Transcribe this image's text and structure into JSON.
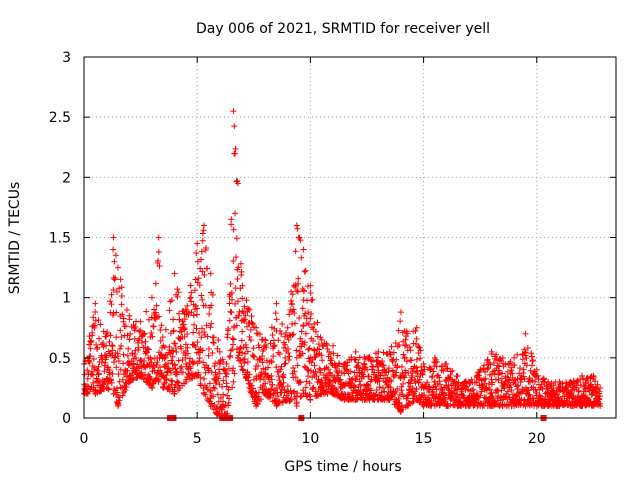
{
  "chart_data": {
    "type": "scatter",
    "title": "Day 006 of 2021, SRMTID for receiver yell",
    "xlabel": "GPS time / hours",
    "ylabel": "SRMTID / TECUs",
    "xlim": [
      0,
      23.5
    ],
    "ylim": [
      0,
      3
    ],
    "x_ticks": [
      0,
      5,
      10,
      15,
      20
    ],
    "x_tick_labels": [
      "0",
      "5",
      "10",
      "15",
      "20"
    ],
    "y_ticks": [
      0,
      0.5,
      1,
      1.5,
      2,
      2.5,
      3
    ],
    "y_tick_labels": [
      "0",
      "0.5",
      "1",
      "1.5",
      "2",
      "2.5",
      "3"
    ],
    "grid": true,
    "marker": "plus",
    "color": "#ff0000",
    "envelope_note": "Dense cloud of '+' markers from ~0 to ~22.8 h; values below are the approximate upper/lower envelope of the cloud (TECU).",
    "series": [
      {
        "name": "SRMTID",
        "x": [
          0.0,
          0.5,
          1.0,
          1.3,
          1.5,
          2.0,
          2.5,
          3.0,
          3.3,
          3.5,
          4.0,
          4.5,
          5.0,
          5.3,
          5.6,
          6.0,
          6.3,
          6.6,
          6.8,
          7.0,
          7.3,
          7.6,
          8.0,
          8.5,
          9.0,
          9.4,
          9.7,
          10.0,
          10.5,
          11.0,
          11.5,
          12.0,
          12.5,
          13.0,
          13.5,
          14.0,
          14.3,
          14.7,
          15.0,
          15.5,
          16.0,
          16.5,
          17.0,
          17.5,
          18.0,
          18.5,
          19.0,
          19.5,
          20.0,
          20.5,
          21.0,
          21.5,
          22.0,
          22.5,
          22.8
        ],
        "upper": [
          0.45,
          0.95,
          0.7,
          1.5,
          1.25,
          0.85,
          0.8,
          1.0,
          1.5,
          0.6,
          1.2,
          0.9,
          1.45,
          1.6,
          1.2,
          0.55,
          0.45,
          2.55,
          1.95,
          1.1,
          0.9,
          0.75,
          0.65,
          0.95,
          0.75,
          1.6,
          1.4,
          1.1,
          0.65,
          0.6,
          0.45,
          0.55,
          0.5,
          0.55,
          0.55,
          0.88,
          0.7,
          0.75,
          0.45,
          0.5,
          0.45,
          0.35,
          0.3,
          0.4,
          0.55,
          0.5,
          0.5,
          0.7,
          0.4,
          0.3,
          0.3,
          0.3,
          0.35,
          0.35,
          0.25
        ],
        "lower": [
          0.2,
          0.2,
          0.25,
          0.2,
          0.1,
          0.3,
          0.35,
          0.25,
          0.3,
          0.25,
          0.2,
          0.3,
          0.35,
          0.2,
          0.1,
          0.0,
          0.0,
          0.3,
          0.5,
          0.4,
          0.25,
          0.1,
          0.2,
          0.1,
          0.15,
          0.1,
          0.2,
          0.15,
          0.2,
          0.2,
          0.15,
          0.15,
          0.15,
          0.15,
          0.15,
          0.05,
          0.1,
          0.15,
          0.1,
          0.1,
          0.1,
          0.1,
          0.1,
          0.1,
          0.1,
          0.1,
          0.1,
          0.1,
          0.1,
          0.1,
          0.1,
          0.1,
          0.1,
          0.1,
          0.1
        ]
      }
    ],
    "zero_markers_x": [
      3.8,
      3.95,
      6.15,
      6.3,
      6.45,
      9.6,
      20.3
    ]
  }
}
